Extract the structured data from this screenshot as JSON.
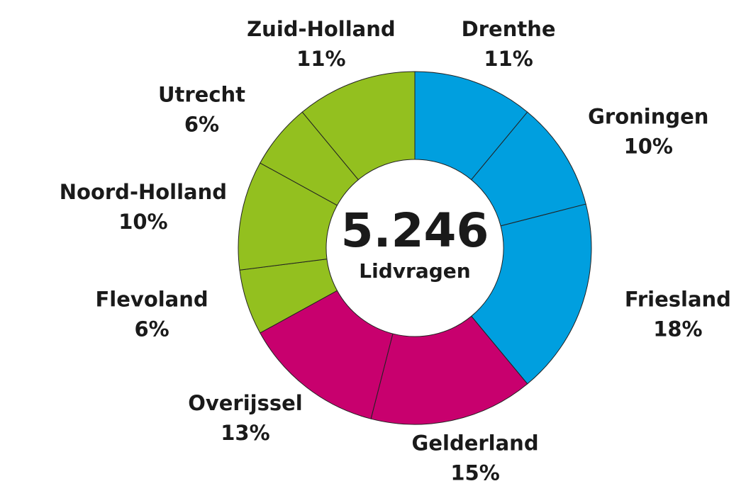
{
  "chart_data": {
    "type": "donut",
    "center_value": "5.246",
    "center_label": "Lidvragen",
    "categories": [
      "Drenthe",
      "Groningen",
      "Friesland",
      "Gelderland",
      "Overijssel",
      "Flevoland",
      "Noord-Holland",
      "Utrecht",
      "Zuid-Holland"
    ],
    "values": [
      11,
      10,
      18,
      15,
      13,
      6,
      10,
      6,
      11
    ],
    "value_labels": [
      "11%",
      "10%",
      "18%",
      "15%",
      "13%",
      "6%",
      "10%",
      "6%",
      "11%"
    ],
    "colors": [
      "#009fdf",
      "#009fdf",
      "#009fdf",
      "#c8006e",
      "#c8006e",
      "#93c01f",
      "#93c01f",
      "#93c01f",
      "#93c01f"
    ]
  }
}
